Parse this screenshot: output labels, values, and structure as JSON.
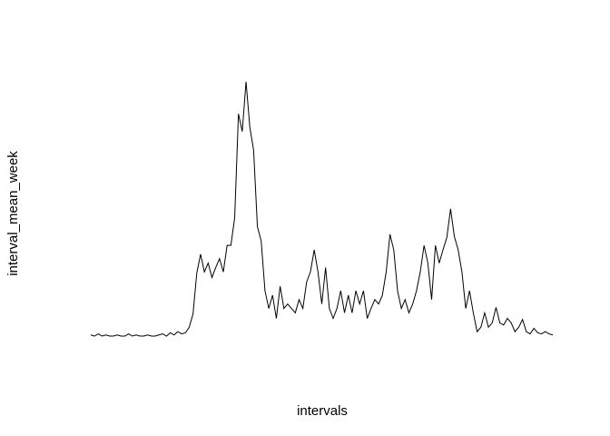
{
  "chart_data": {
    "type": "line",
    "xlabel": "intervals",
    "ylabel": "interval_mean_week",
    "color": "#000000",
    "x": [
      1,
      2,
      3,
      4,
      5,
      6,
      7,
      8,
      9,
      10,
      11,
      12,
      13,
      14,
      15,
      16,
      17,
      18,
      19,
      20,
      21,
      22,
      23,
      24,
      25,
      26,
      27,
      28,
      29,
      30,
      31,
      32,
      33,
      34,
      35,
      36,
      37,
      38,
      39,
      40,
      41,
      42,
      43,
      44,
      45,
      46,
      47,
      48,
      49,
      50,
      51,
      52,
      53,
      54,
      55,
      56,
      57,
      58,
      59,
      60,
      61,
      62,
      63,
      64,
      65,
      66,
      67,
      68,
      69,
      70,
      71,
      72,
      73,
      74,
      75,
      76,
      77,
      78,
      79,
      80,
      81,
      82,
      83,
      84,
      85,
      86,
      87,
      88,
      89,
      90,
      91,
      92,
      93,
      94,
      95,
      96,
      97,
      98,
      99,
      100,
      101,
      102,
      103,
      104,
      105,
      106,
      107,
      108,
      109,
      110,
      111,
      112,
      113,
      114,
      115,
      116,
      117,
      118,
      119,
      120,
      121,
      122,
      123
    ],
    "values": [
      1,
      0,
      2,
      0,
      1,
      0,
      0,
      1,
      0,
      0,
      2,
      0,
      1,
      0,
      0,
      1,
      0,
      0,
      1,
      2,
      0,
      3,
      1,
      4,
      2,
      3,
      8,
      20,
      57,
      74,
      58,
      66,
      53,
      62,
      70,
      58,
      82,
      82,
      107,
      201,
      185,
      230,
      189,
      168,
      99,
      86,
      41,
      25,
      37,
      16,
      45,
      25,
      29,
      25,
      21,
      33,
      25,
      49,
      58,
      78,
      58,
      29,
      62,
      25,
      16,
      25,
      41,
      21,
      37,
      21,
      41,
      29,
      41,
      16,
      25,
      33,
      29,
      37,
      58,
      92,
      78,
      41,
      25,
      33,
      21,
      29,
      41,
      58,
      82,
      66,
      33,
      82,
      66,
      78,
      89,
      115,
      90,
      78,
      58,
      25,
      41,
      21,
      4,
      8,
      21,
      8,
      12,
      26,
      12,
      10,
      16,
      12,
      4,
      8,
      15,
      4,
      2,
      7,
      3,
      2,
      4,
      2,
      1
    ],
    "xlim": [
      -3.88,
      127.88
    ],
    "ylim": [
      -9.2,
      239.2
    ]
  }
}
